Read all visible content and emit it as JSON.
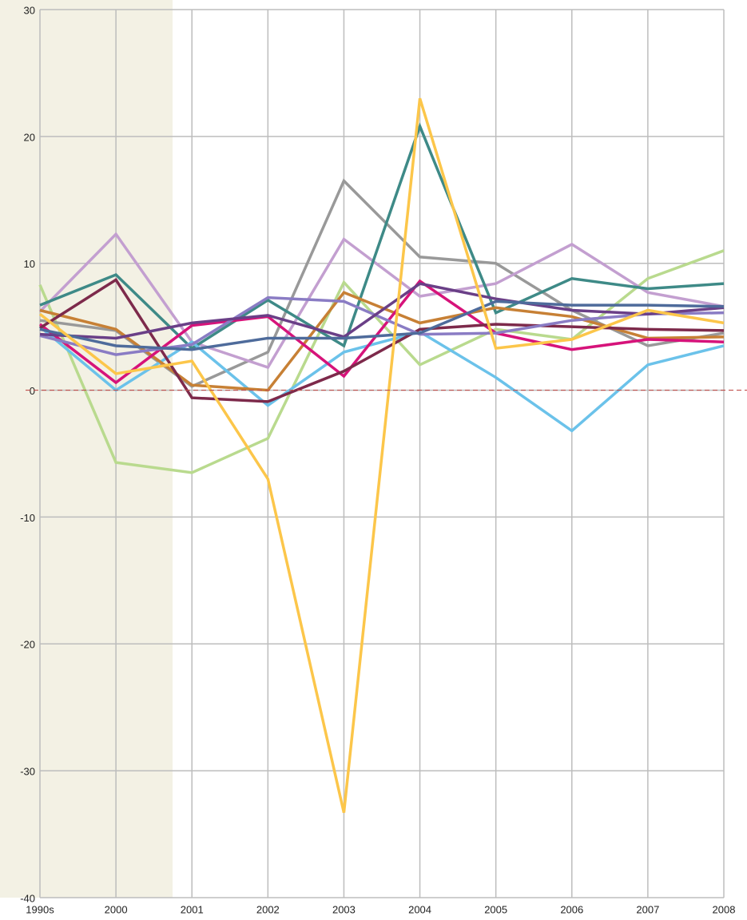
{
  "chart_data": {
    "type": "line",
    "categories": [
      "1990s",
      "2000",
      "2001",
      "2002",
      "2003",
      "2004",
      "2005",
      "2006",
      "2007",
      "2008"
    ],
    "ylim": [
      -40,
      30
    ],
    "yticks": [
      -40,
      -30,
      -20,
      -10,
      0,
      10,
      20,
      30
    ],
    "grid": true,
    "series": [
      {
        "color": "#b9da8e",
        "values": [
          8.3,
          -5.7,
          -6.5,
          -3.8,
          8.5,
          2,
          4.8,
          4,
          8.8,
          11
        ]
      },
      {
        "color": "#999999",
        "values": [
          5.5,
          4.7,
          0.3,
          3,
          16.5,
          10.5,
          10,
          6.3,
          3.5,
          4.5
        ]
      },
      {
        "color": "#c39fd0",
        "values": [
          6.2,
          12.3,
          3.8,
          1.8,
          11.9,
          7.4,
          8.4,
          11.5,
          7.7,
          6.6
        ]
      },
      {
        "color": "#3e8a87",
        "values": [
          6.7,
          9.1,
          3.3,
          7.1,
          3.5,
          20.8,
          6.1,
          8.8,
          8,
          8.4
        ]
      },
      {
        "color": "#6bc2ea",
        "values": [
          5,
          0,
          3.8,
          -1.2,
          3,
          4.6,
          1,
          -3.2,
          2,
          3.5
        ]
      },
      {
        "color": "#c78035",
        "values": [
          6.3,
          4.8,
          0.4,
          0,
          7.7,
          5.3,
          6.5,
          5.8,
          4.1,
          4.2
        ]
      },
      {
        "color": "#d6137a",
        "values": [
          5.2,
          0.6,
          5.1,
          5.8,
          1.1,
          8.6,
          4.5,
          3.2,
          4,
          3.8
        ]
      },
      {
        "color": "#7d2a4b",
        "values": [
          4.9,
          8.7,
          -0.6,
          -0.9,
          1.5,
          4.8,
          5.2,
          5,
          4.8,
          4.7
        ]
      },
      {
        "color": "#8a7cc4",
        "values": [
          4.3,
          2.8,
          3.6,
          7.3,
          7,
          4.4,
          4.5,
          5.5,
          6,
          6.1
        ]
      },
      {
        "color": "#6a3f87",
        "values": [
          4.4,
          4.1,
          5.3,
          5.9,
          4.2,
          8.4,
          7.2,
          6.3,
          6,
          6.5
        ]
      },
      {
        "color": "#4e6b9b",
        "values": [
          4.8,
          3.5,
          3.2,
          4.1,
          4.1,
          4.5,
          7,
          6.7,
          6.7,
          6.6
        ]
      },
      {
        "color": "#fcc64a",
        "values": [
          6,
          1.3,
          2.3,
          -7,
          -33.3,
          23,
          3.3,
          4,
          6.3,
          5.3
        ]
      }
    ]
  }
}
